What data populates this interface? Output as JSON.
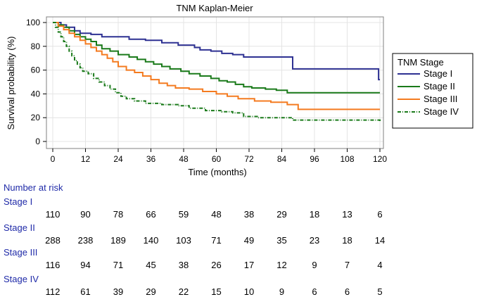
{
  "chart_data": {
    "type": "line",
    "subtype": "kaplan-meier-step",
    "title": "TNM Kaplan-Meier",
    "xlabel": "Time (months)",
    "ylabel": "Survival probability (%)",
    "xlim": [
      0,
      120
    ],
    "ylim": [
      0,
      100
    ],
    "xticks": [
      0,
      12,
      24,
      36,
      48,
      60,
      72,
      84,
      96,
      108,
      120
    ],
    "yticks": [
      0,
      20,
      40,
      60,
      80,
      100
    ],
    "grid": true,
    "legend": {
      "title": "TNM Stage",
      "position": "right",
      "items": [
        "Stage I",
        "Stage II",
        "Stage III",
        "Stage IV"
      ]
    },
    "series": [
      {
        "name": "Stage I",
        "color": "#2e3192",
        "dash": "solid",
        "steps": [
          [
            0,
            100
          ],
          [
            3,
            98
          ],
          [
            5,
            96
          ],
          [
            8,
            93
          ],
          [
            10,
            91
          ],
          [
            14,
            90
          ],
          [
            18,
            88
          ],
          [
            28,
            86
          ],
          [
            34,
            85
          ],
          [
            40,
            83
          ],
          [
            46,
            81
          ],
          [
            52,
            79
          ],
          [
            54,
            77
          ],
          [
            58,
            76
          ],
          [
            62,
            74
          ],
          [
            66,
            73
          ],
          [
            70,
            71
          ],
          [
            80,
            71
          ],
          [
            88,
            61
          ],
          [
            105,
            61
          ],
          [
            119.5,
            52
          ],
          [
            120,
            52
          ]
        ]
      },
      {
        "name": "Stage II",
        "color": "#1a7a1a",
        "dash": "solid",
        "steps": [
          [
            0,
            100
          ],
          [
            2,
            98
          ],
          [
            4,
            96
          ],
          [
            6,
            93
          ],
          [
            8,
            90
          ],
          [
            10,
            88
          ],
          [
            12,
            86
          ],
          [
            14,
            84
          ],
          [
            16,
            81
          ],
          [
            18,
            78
          ],
          [
            21,
            76
          ],
          [
            24,
            73
          ],
          [
            28,
            71
          ],
          [
            31,
            69
          ],
          [
            34,
            67
          ],
          [
            37,
            65
          ],
          [
            40,
            63
          ],
          [
            43,
            61
          ],
          [
            47,
            59
          ],
          [
            50,
            57
          ],
          [
            54,
            55
          ],
          [
            58,
            53
          ],
          [
            61,
            51
          ],
          [
            64,
            50
          ],
          [
            67,
            48
          ],
          [
            70,
            46
          ],
          [
            73,
            45
          ],
          [
            78,
            44
          ],
          [
            82,
            43
          ],
          [
            86,
            41
          ],
          [
            120,
            41
          ]
        ]
      },
      {
        "name": "Stage III",
        "color": "#f47b20",
        "dash": "solid",
        "steps": [
          [
            0,
            100
          ],
          [
            2,
            97
          ],
          [
            4,
            94
          ],
          [
            6,
            91
          ],
          [
            8,
            88
          ],
          [
            10,
            85
          ],
          [
            12,
            82
          ],
          [
            14,
            79
          ],
          [
            16,
            76
          ],
          [
            18,
            73
          ],
          [
            20,
            70
          ],
          [
            22,
            67
          ],
          [
            24,
            63
          ],
          [
            27,
            60
          ],
          [
            30,
            58
          ],
          [
            33,
            55
          ],
          [
            36,
            52
          ],
          [
            39,
            49
          ],
          [
            42,
            47
          ],
          [
            45,
            45
          ],
          [
            50,
            44
          ],
          [
            55,
            42
          ],
          [
            60,
            40
          ],
          [
            64,
            38
          ],
          [
            68,
            36
          ],
          [
            74,
            34
          ],
          [
            80,
            33
          ],
          [
            86,
            31
          ],
          [
            90,
            27
          ],
          [
            120,
            27
          ]
        ]
      },
      {
        "name": "Stage IV",
        "color": "#1a7a1a",
        "dash": "dashdot",
        "steps": [
          [
            0,
            100
          ],
          [
            1,
            96
          ],
          [
            2,
            92
          ],
          [
            3,
            88
          ],
          [
            4,
            84
          ],
          [
            5,
            80
          ],
          [
            6,
            76
          ],
          [
            7,
            72
          ],
          [
            8,
            68
          ],
          [
            9,
            65
          ],
          [
            10,
            62
          ],
          [
            11,
            59
          ],
          [
            13,
            57
          ],
          [
            15,
            53
          ],
          [
            17,
            50
          ],
          [
            19,
            47
          ],
          [
            21,
            44
          ],
          [
            23,
            41
          ],
          [
            25,
            38
          ],
          [
            27,
            36
          ],
          [
            30,
            34
          ],
          [
            34,
            32
          ],
          [
            40,
            31
          ],
          [
            46,
            30
          ],
          [
            50,
            28
          ],
          [
            56,
            26
          ],
          [
            62,
            25
          ],
          [
            66,
            24
          ],
          [
            70,
            21
          ],
          [
            75,
            20
          ],
          [
            84,
            20
          ],
          [
            88,
            18
          ],
          [
            100,
            18
          ],
          [
            120,
            17
          ]
        ]
      }
    ]
  },
  "number_at_risk": {
    "heading": "Number at risk",
    "times": [
      0,
      12,
      24,
      36,
      48,
      60,
      72,
      84,
      96,
      108,
      120
    ],
    "rows": [
      {
        "label": "Stage I",
        "counts": [
          "110",
          "90",
          "78",
          "66",
          "59",
          "48",
          "38",
          "29",
          "18",
          "13",
          "6"
        ]
      },
      {
        "label": "Stage II",
        "counts": [
          "288",
          "238",
          "189",
          "140",
          "103",
          "71",
          "49",
          "35",
          "23",
          "18",
          "14"
        ]
      },
      {
        "label": "Stage III",
        "counts": [
          "116",
          "94",
          "71",
          "45",
          "38",
          "26",
          "17",
          "12",
          "9",
          "7",
          "4"
        ]
      },
      {
        "label": "Stage IV",
        "counts": [
          "112",
          "61",
          "39",
          "29",
          "22",
          "15",
          "10",
          "9",
          "6",
          "6",
          "5"
        ]
      }
    ]
  }
}
